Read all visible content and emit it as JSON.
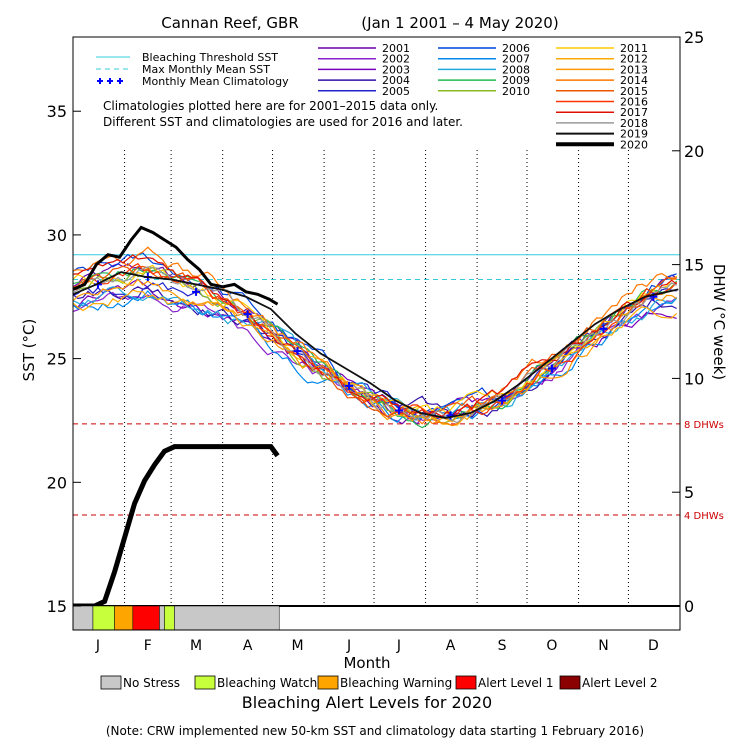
{
  "chart_data": {
    "type": "line",
    "title": "Cannan Reef, GBR",
    "subtitle": "(Jan 1 2001 – 4 May 2020)",
    "xlabel": "Month",
    "ylabel_left": "SST (°C)",
    "ylabel_right": "DHW (°C week)",
    "months": [
      "J",
      "F",
      "M",
      "A",
      "M",
      "J",
      "J",
      "A",
      "S",
      "O",
      "N",
      "D"
    ],
    "ylim_left": [
      15,
      38
    ],
    "yticks_left": [
      15,
      20,
      25,
      30,
      35
    ],
    "ylim_right": [
      0,
      25
    ],
    "yticks_right": [
      0,
      5,
      10,
      15,
      20,
      25
    ],
    "bleaching_threshold_sst": 29.2,
    "max_monthly_mean_sst": 28.2,
    "dhw_reference_lines": [
      {
        "value": 4,
        "label": "4 DHWs"
      },
      {
        "value": 8,
        "label": "8 DHWs"
      }
    ],
    "legend_lines": [
      {
        "label": "Bleaching Threshold SST",
        "color": "#33ccdd",
        "style": "solid"
      },
      {
        "label": "Max Monthly Mean SST",
        "color": "#33ccdd",
        "style": "dashed"
      },
      {
        "label": "Monthly Mean Climatology",
        "color": "#0000ff",
        "style": "plus"
      }
    ],
    "notes": [
      "Climatologies plotted here are for 2001–2015 data only.",
      "Different SST and climatologies are used for 2016 and later."
    ],
    "climatology_monthly": [
      28.0,
      28.3,
      27.7,
      26.8,
      25.3,
      23.9,
      22.9,
      22.7,
      23.3,
      24.6,
      26.2,
      27.5
    ],
    "years": [
      {
        "year": "2001",
        "color": "#6600aa"
      },
      {
        "year": "2002",
        "color": "#8822cc"
      },
      {
        "year": "2003",
        "color": "#7700bb"
      },
      {
        "year": "2004",
        "color": "#3311aa"
      },
      {
        "year": "2005",
        "color": "#2222cc"
      },
      {
        "year": "2006",
        "color": "#0044dd"
      },
      {
        "year": "2007",
        "color": "#0088ee"
      },
      {
        "year": "2008",
        "color": "#22aadd"
      },
      {
        "year": "2009",
        "color": "#22bb55"
      },
      {
        "year": "2010",
        "color": "#88bb22"
      },
      {
        "year": "2011",
        "color": "#ffcc00"
      },
      {
        "year": "2012",
        "color": "#ffaa00"
      },
      {
        "year": "2013",
        "color": "#ff9900"
      },
      {
        "year": "2014",
        "color": "#ff7700"
      },
      {
        "year": "2015",
        "color": "#ee5500"
      },
      {
        "year": "2016",
        "color": "#ff3300"
      },
      {
        "year": "2017",
        "color": "#dd1100"
      },
      {
        "year": "2018",
        "color": "#999999"
      },
      {
        "year": "2019",
        "color": "#111111"
      },
      {
        "year": "2020",
        "color": "#000000"
      }
    ],
    "sst_2020": {
      "day": [
        1,
        8,
        15,
        22,
        29,
        36,
        42,
        49,
        56,
        63,
        70,
        77,
        84,
        91,
        98,
        105,
        112,
        119,
        124
      ],
      "value": [
        27.8,
        28.0,
        28.8,
        29.2,
        29.1,
        29.8,
        30.3,
        30.1,
        29.8,
        29.5,
        29.0,
        28.6,
        28.0,
        27.9,
        28.0,
        27.7,
        27.6,
        27.4,
        27.2
      ]
    },
    "sst_2019": {
      "day": [
        1,
        15,
        30,
        45,
        60,
        75,
        90,
        105,
        120,
        135,
        150,
        165,
        180,
        195,
        210,
        225,
        240,
        255,
        270,
        285,
        300,
        315,
        330,
        345,
        365
      ],
      "value": [
        27.6,
        28.0,
        28.5,
        28.3,
        28.2,
        28.0,
        27.8,
        27.5,
        27.0,
        26.0,
        25.2,
        24.6,
        24.0,
        23.3,
        22.8,
        22.6,
        22.8,
        23.3,
        24.0,
        24.8,
        25.6,
        26.4,
        27.0,
        27.5,
        27.8
      ]
    },
    "dhw_2020": {
      "day": [
        1,
        14,
        20,
        26,
        32,
        38,
        44,
        50,
        56,
        62,
        70,
        80,
        90,
        100,
        110,
        120,
        124
      ],
      "value": [
        0,
        0,
        0.2,
        1.5,
        3.0,
        4.5,
        5.5,
        6.2,
        6.8,
        7.0,
        7.0,
        7.0,
        7.0,
        7.0,
        7.0,
        7.0,
        6.6
      ]
    },
    "alert_levels_2020": [
      {
        "start_day": 1,
        "end_day": 13,
        "level": "No Stress"
      },
      {
        "start_day": 13,
        "end_day": 26,
        "level": "Bleaching Watch"
      },
      {
        "start_day": 26,
        "end_day": 37,
        "level": "Bleaching Warning"
      },
      {
        "start_day": 37,
        "end_day": 53,
        "level": "Alert Level 1"
      },
      {
        "start_day": 53,
        "end_day": 56,
        "level": "No Stress"
      },
      {
        "start_day": 56,
        "end_day": 62,
        "level": "Bleaching Watch"
      },
      {
        "start_day": 62,
        "end_day": 125,
        "level": "No Stress"
      }
    ],
    "alert_legend": [
      {
        "label": "No Stress",
        "color": "#c8c8c8"
      },
      {
        "label": "Bleaching Watch",
        "color": "#c8ff3c"
      },
      {
        "label": "Bleaching Warning",
        "color": "#ffa500"
      },
      {
        "label": "Alert Level 1",
        "color": "#ff0000"
      },
      {
        "label": "Alert Level 2",
        "color": "#8b0000"
      }
    ],
    "alert_legend_title": "Bleaching Alert Levels for 2020",
    "footnote": "(Note: CRW implemented new 50-km SST and climatology data starting 1 February 2016)"
  }
}
